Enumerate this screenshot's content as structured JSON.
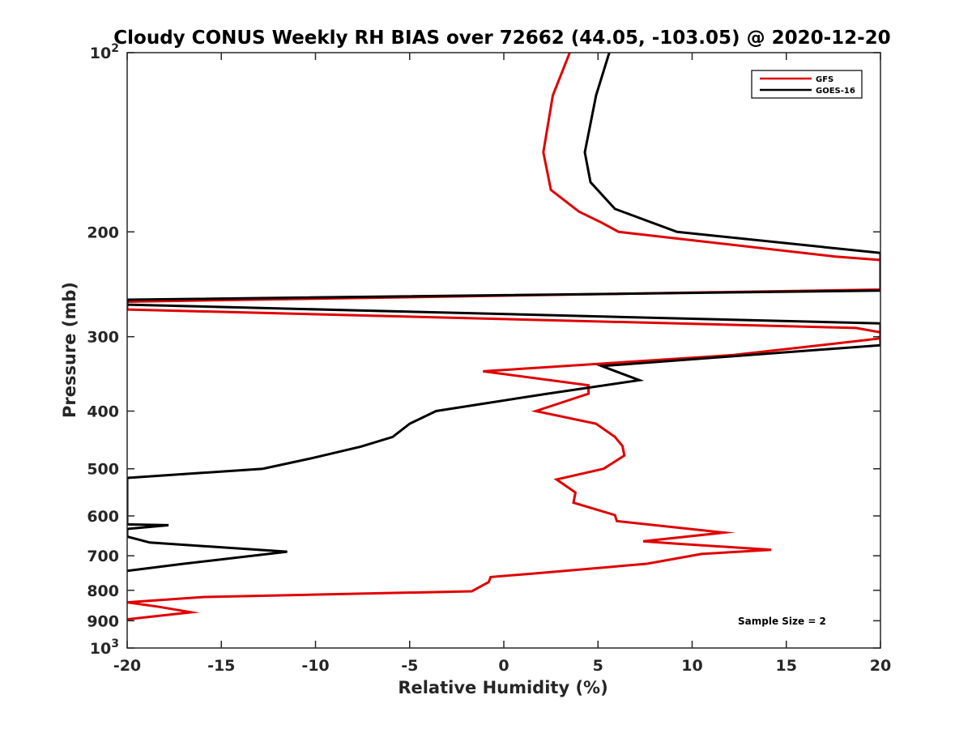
{
  "chart_data": {
    "type": "line",
    "title": "Cloudy CONUS Weekly RH BIAS over 72662 (44.05, -103.05) @ 2020-12-20",
    "xlabel": "Relative Humidity (%)",
    "ylabel": "Pressure (mb)",
    "xlim": [
      -20,
      20
    ],
    "ylim": [
      100,
      1000
    ],
    "y_scale": "log",
    "y_reversed": true,
    "x_ticks": [
      "-20",
      "-15",
      "-10",
      "-5",
      "0",
      "5",
      "10",
      "15",
      "20"
    ],
    "y_ticks": [
      {
        "value": 100,
        "base": "10",
        "exp": "2"
      },
      {
        "value": 200,
        "label": "200"
      },
      {
        "value": 300,
        "label": "300"
      },
      {
        "value": 400,
        "label": "400"
      },
      {
        "value": 500,
        "label": "500"
      },
      {
        "value": 600,
        "label": "600"
      },
      {
        "value": 700,
        "label": "700"
      },
      {
        "value": 800,
        "label": "800"
      },
      {
        "value": 900,
        "label": "900"
      },
      {
        "value": 1000,
        "base": "10",
        "exp": "3"
      }
    ],
    "grid": false,
    "legend_position": "top-right",
    "annotation": "Sample Size = 2",
    "series": [
      {
        "name": "GFS",
        "color": "#e00000",
        "x": [
          3.5,
          2.6,
          2.1,
          2.5,
          4.0,
          5.2,
          6.1,
          17.6,
          20.0,
          20.0,
          -20.0,
          -20.0,
          18.7,
          20.0,
          20.0,
          12.2,
          -1.1,
          4.5,
          4.5,
          1.7,
          4.9,
          5.9,
          6.3,
          6.4,
          5.3,
          2.8,
          3.8,
          3.7,
          5.9,
          6.0,
          11.7,
          7.4,
          9.2,
          14.2,
          10.5,
          7.6,
          1.5,
          -0.7,
          -0.8,
          -1.7,
          -15.9,
          -20.0,
          -18.3,
          -16.6,
          -20.0
        ],
        "y": [
          100,
          118,
          147,
          170,
          185,
          193,
          200,
          220,
          223,
          250,
          262,
          270,
          290,
          295,
          302,
          322,
          343,
          362,
          374,
          400,
          420,
          442,
          458,
          475,
          500,
          521,
          548,
          570,
          598,
          612,
          640,
          662,
          668,
          684,
          695,
          722,
          750,
          760,
          775,
          803,
          821,
          838,
          853,
          871,
          895
        ]
      },
      {
        "name": "GOES-16",
        "color": "#000000",
        "x": [
          5.6,
          4.9,
          4.3,
          4.6,
          5.9,
          9.2,
          20.0,
          20.0,
          -20.0,
          -20.0,
          20.0,
          20.0,
          5.2,
          7.2,
          2.3,
          -3.6,
          -5.0,
          -5.9,
          -7.6,
          -10.2,
          -12.8,
          -20.0,
          -20.0,
          -17.8,
          -20.0,
          -20.0,
          -18.8,
          -11.5,
          -17.0,
          -20.0
        ],
        "y": [
          100,
          118,
          147,
          165,
          183,
          200,
          217,
          251,
          260,
          265,
          285,
          310,
          336,
          355,
          374,
          400,
          420,
          442,
          459,
          480,
          500,
          518,
          620,
          622,
          631,
          650,
          665,
          689,
          722,
          742
        ]
      }
    ]
  }
}
